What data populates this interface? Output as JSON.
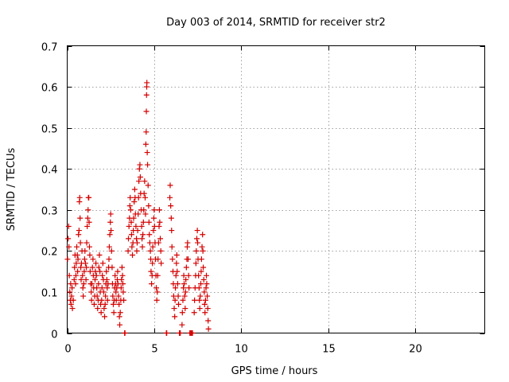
{
  "chart_data": {
    "type": "scatter",
    "title": "Day 003 of 2014, SRMTID for receiver str2",
    "xlabel": "GPS time / hours",
    "ylabel": "SRMTID / TECUs",
    "xlim": [
      0,
      24
    ],
    "ylim": [
      0,
      0.7
    ],
    "xticks": [
      "0",
      "5",
      "10",
      "15",
      "20"
    ],
    "yticks": [
      "0",
      "0.1",
      "0.2",
      "0.3",
      "0.4",
      "0.5",
      "0.6",
      "0.7"
    ],
    "grid": true,
    "marker": "plus",
    "color": "#d40000",
    "series": [
      {
        "name": "SRMTID",
        "points": [
          [
            0.02,
            0.18
          ],
          [
            0.05,
            0.23
          ],
          [
            0.08,
            0.26
          ],
          [
            0.1,
            0.21
          ],
          [
            0.12,
            0.14
          ],
          [
            0.15,
            0.1
          ],
          [
            0.18,
            0.08
          ],
          [
            0.2,
            0.12
          ],
          [
            0.22,
            0.07
          ],
          [
            0.25,
            0.09
          ],
          [
            0.28,
            0.11
          ],
          [
            0.3,
            0.06
          ],
          [
            0.35,
            0.08
          ],
          [
            0.4,
            0.13
          ],
          [
            0.42,
            0.16
          ],
          [
            0.45,
            0.19
          ],
          [
            0.48,
            0.12
          ],
          [
            0.5,
            0.14
          ],
          [
            0.52,
            0.17
          ],
          [
            0.55,
            0.21
          ],
          [
            0.58,
            0.19
          ],
          [
            0.6,
            0.15
          ],
          [
            0.62,
            0.18
          ],
          [
            0.65,
            0.24
          ],
          [
            0.68,
            0.25
          ],
          [
            0.7,
            0.32
          ],
          [
            0.72,
            0.33
          ],
          [
            0.74,
            0.28
          ],
          [
            0.76,
            0.22
          ],
          [
            0.78,
            0.16
          ],
          [
            0.8,
            0.13
          ],
          [
            0.82,
            0.17
          ],
          [
            0.85,
            0.2
          ],
          [
            0.88,
            0.14
          ],
          [
            0.9,
            0.11
          ],
          [
            0.92,
            0.09
          ],
          [
            0.95,
            0.12
          ],
          [
            0.98,
            0.15
          ],
          [
            1.0,
            0.18
          ],
          [
            1.02,
            0.2
          ],
          [
            1.05,
            0.17
          ],
          [
            1.08,
            0.13
          ],
          [
            1.1,
            0.16
          ],
          [
            1.12,
            0.22
          ],
          [
            1.15,
            0.26
          ],
          [
            1.18,
            0.28
          ],
          [
            1.2,
            0.3
          ],
          [
            1.22,
            0.33
          ],
          [
            1.24,
            0.33
          ],
          [
            1.26,
            0.27
          ],
          [
            1.28,
            0.21
          ],
          [
            1.3,
            0.19
          ],
          [
            1.32,
            0.15
          ],
          [
            1.35,
            0.12
          ],
          [
            1.38,
            0.1
          ],
          [
            1.4,
            0.08
          ],
          [
            1.42,
            0.12
          ],
          [
            1.45,
            0.16
          ],
          [
            1.48,
            0.18
          ],
          [
            1.5,
            0.14
          ],
          [
            1.52,
            0.11
          ],
          [
            1.55,
            0.07
          ],
          [
            1.58,
            0.09
          ],
          [
            1.6,
            0.13
          ],
          [
            1.62,
            0.15
          ],
          [
            1.65,
            0.17
          ],
          [
            1.68,
            0.14
          ],
          [
            1.7,
            0.11
          ],
          [
            1.72,
            0.09
          ],
          [
            1.75,
            0.06
          ],
          [
            1.78,
            0.08
          ],
          [
            1.8,
            0.12
          ],
          [
            1.82,
            0.16
          ],
          [
            1.85,
            0.19
          ],
          [
            1.88,
            0.15
          ],
          [
            1.9,
            0.1
          ],
          [
            1.92,
            0.07
          ],
          [
            1.95,
            0.05
          ],
          [
            1.98,
            0.08
          ],
          [
            2.0,
            0.11
          ],
          [
            2.02,
            0.14
          ],
          [
            2.05,
            0.17
          ],
          [
            2.08,
            0.13
          ],
          [
            2.1,
            0.1
          ],
          [
            2.12,
            0.06
          ],
          [
            2.15,
            0.04
          ],
          [
            2.18,
            0.07
          ],
          [
            2.2,
            0.09
          ],
          [
            2.22,
            0.12
          ],
          [
            2.25,
            0.15
          ],
          [
            2.28,
            0.13
          ],
          [
            2.3,
            0.11
          ],
          [
            2.32,
            0.08
          ],
          [
            2.35,
            0.12
          ],
          [
            2.38,
            0.16
          ],
          [
            2.4,
            0.18
          ],
          [
            2.42,
            0.21
          ],
          [
            2.45,
            0.24
          ],
          [
            2.48,
            0.27
          ],
          [
            2.5,
            0.29
          ],
          [
            2.52,
            0.25
          ],
          [
            2.55,
            0.2
          ],
          [
            2.58,
            0.16
          ],
          [
            2.6,
            0.12
          ],
          [
            2.62,
            0.09
          ],
          [
            2.65,
            0.07
          ],
          [
            2.68,
            0.05
          ],
          [
            2.7,
            0.08
          ],
          [
            2.72,
            0.11
          ],
          [
            2.75,
            0.14
          ],
          [
            2.78,
            0.12
          ],
          [
            2.8,
            0.1
          ],
          [
            2.82,
            0.08
          ],
          [
            2.85,
            0.11
          ],
          [
            2.88,
            0.13
          ],
          [
            2.9,
            0.15
          ],
          [
            2.92,
            0.12
          ],
          [
            2.95,
            0.09
          ],
          [
            2.98,
            0.07
          ],
          [
            3.0,
            0.04
          ],
          [
            3.02,
            0.02
          ],
          [
            3.05,
            0.05
          ],
          [
            3.08,
            0.08
          ],
          [
            3.1,
            0.11
          ],
          [
            3.12,
            0.13
          ],
          [
            3.15,
            0.16
          ],
          [
            3.18,
            0.14
          ],
          [
            3.2,
            0.12
          ],
          [
            3.22,
            0.1
          ],
          [
            3.25,
            0.08
          ],
          [
            3.3,
            0.0
          ],
          [
            3.32,
            0.0
          ],
          [
            3.5,
            0.2
          ],
          [
            3.52,
            0.23
          ],
          [
            3.55,
            0.26
          ],
          [
            3.58,
            0.28
          ],
          [
            3.6,
            0.31
          ],
          [
            3.62,
            0.33
          ],
          [
            3.65,
            0.3
          ],
          [
            3.68,
            0.27
          ],
          [
            3.7,
            0.24
          ],
          [
            3.72,
            0.21
          ],
          [
            3.75,
            0.19
          ],
          [
            3.78,
            0.22
          ],
          [
            3.8,
            0.25
          ],
          [
            3.82,
            0.28
          ],
          [
            3.85,
            0.32
          ],
          [
            3.88,
            0.35
          ],
          [
            3.9,
            0.33
          ],
          [
            3.92,
            0.29
          ],
          [
            3.95,
            0.26
          ],
          [
            3.98,
            0.23
          ],
          [
            4.0,
            0.2
          ],
          [
            4.02,
            0.22
          ],
          [
            4.05,
            0.25
          ],
          [
            4.08,
            0.29
          ],
          [
            4.1,
            0.33
          ],
          [
            4.12,
            0.37
          ],
          [
            4.15,
            0.4
          ],
          [
            4.18,
            0.41
          ],
          [
            4.2,
            0.38
          ],
          [
            4.22,
            0.34
          ],
          [
            4.25,
            0.3
          ],
          [
            4.28,
            0.26
          ],
          [
            4.3,
            0.23
          ],
          [
            4.32,
            0.21
          ],
          [
            4.35,
            0.24
          ],
          [
            4.38,
            0.27
          ],
          [
            4.4,
            0.3
          ],
          [
            4.42,
            0.34
          ],
          [
            4.45,
            0.37
          ],
          [
            4.48,
            0.33
          ],
          [
            4.5,
            0.29
          ],
          [
            4.52,
            0.46
          ],
          [
            4.54,
            0.49
          ],
          [
            4.55,
            0.54
          ],
          [
            4.56,
            0.58
          ],
          [
            4.57,
            0.6
          ],
          [
            4.58,
            0.61
          ],
          [
            4.6,
            0.44
          ],
          [
            4.62,
            0.41
          ],
          [
            4.65,
            0.36
          ],
          [
            4.68,
            0.31
          ],
          [
            4.7,
            0.27
          ],
          [
            4.72,
            0.24
          ],
          [
            4.75,
            0.22
          ],
          [
            4.78,
            0.2
          ],
          [
            4.8,
            0.18
          ],
          [
            4.82,
            0.15
          ],
          [
            4.85,
            0.12
          ],
          [
            4.88,
            0.14
          ],
          [
            4.9,
            0.17
          ],
          [
            4.92,
            0.21
          ],
          [
            4.95,
            0.25
          ],
          [
            4.98,
            0.28
          ],
          [
            5.0,
            0.3
          ],
          [
            5.02,
            0.26
          ],
          [
            5.05,
            0.22
          ],
          [
            5.08,
            0.18
          ],
          [
            5.1,
            0.14
          ],
          [
            5.12,
            0.11
          ],
          [
            5.15,
            0.08
          ],
          [
            5.18,
            0.1
          ],
          [
            5.2,
            0.14
          ],
          [
            5.22,
            0.18
          ],
          [
            5.25,
            0.22
          ],
          [
            5.28,
            0.26
          ],
          [
            5.3,
            0.3
          ],
          [
            5.32,
            0.27
          ],
          [
            5.35,
            0.23
          ],
          [
            5.38,
            0.2
          ],
          [
            5.4,
            0.17
          ],
          [
            5.7,
            0.0
          ],
          [
            5.72,
            0.0
          ],
          [
            5.9,
            0.33
          ],
          [
            5.92,
            0.36
          ],
          [
            5.95,
            0.31
          ],
          [
            5.98,
            0.28
          ],
          [
            6.0,
            0.25
          ],
          [
            6.02,
            0.21
          ],
          [
            6.05,
            0.18
          ],
          [
            6.08,
            0.15
          ],
          [
            6.1,
            0.12
          ],
          [
            6.12,
            0.09
          ],
          [
            6.15,
            0.06
          ],
          [
            6.18,
            0.04
          ],
          [
            6.2,
            0.08
          ],
          [
            6.22,
            0.11
          ],
          [
            6.25,
            0.14
          ],
          [
            6.28,
            0.17
          ],
          [
            6.3,
            0.19
          ],
          [
            6.32,
            0.15
          ],
          [
            6.35,
            0.12
          ],
          [
            6.38,
            0.09
          ],
          [
            6.4,
            0.07
          ],
          [
            6.45,
            0.0
          ],
          [
            6.5,
            0.0
          ],
          [
            6.6,
            0.02
          ],
          [
            6.62,
            0.05
          ],
          [
            6.65,
            0.08
          ],
          [
            6.68,
            0.11
          ],
          [
            6.7,
            0.14
          ],
          [
            6.72,
            0.12
          ],
          [
            6.75,
            0.09
          ],
          [
            6.78,
            0.06
          ],
          [
            6.8,
            0.1
          ],
          [
            6.82,
            0.13
          ],
          [
            6.85,
            0.16
          ],
          [
            6.88,
            0.18
          ],
          [
            6.9,
            0.21
          ],
          [
            6.92,
            0.22
          ],
          [
            6.95,
            0.18
          ],
          [
            6.98,
            0.14
          ],
          [
            7.0,
            0.11
          ],
          [
            7.05,
            0.0
          ],
          [
            7.1,
            0.0
          ],
          [
            7.15,
            0.0
          ],
          [
            7.2,
            0.0
          ],
          [
            7.3,
            0.05
          ],
          [
            7.32,
            0.08
          ],
          [
            7.35,
            0.11
          ],
          [
            7.38,
            0.14
          ],
          [
            7.4,
            0.17
          ],
          [
            7.42,
            0.2
          ],
          [
            7.45,
            0.23
          ],
          [
            7.48,
            0.25
          ],
          [
            7.5,
            0.22
          ],
          [
            7.52,
            0.18
          ],
          [
            7.55,
            0.14
          ],
          [
            7.58,
            0.11
          ],
          [
            7.6,
            0.08
          ],
          [
            7.62,
            0.06
          ],
          [
            7.65,
            0.09
          ],
          [
            7.68,
            0.12
          ],
          [
            7.7,
            0.15
          ],
          [
            7.72,
            0.18
          ],
          [
            7.75,
            0.21
          ],
          [
            7.78,
            0.24
          ],
          [
            7.8,
            0.2
          ],
          [
            7.82,
            0.16
          ],
          [
            7.85,
            0.13
          ],
          [
            7.88,
            0.1
          ],
          [
            7.9,
            0.07
          ],
          [
            7.92,
            0.05
          ],
          [
            7.95,
            0.08
          ],
          [
            7.98,
            0.11
          ],
          [
            8.0,
            0.14
          ],
          [
            8.02,
            0.12
          ],
          [
            8.05,
            0.09
          ],
          [
            8.08,
            0.06
          ],
          [
            8.1,
            0.03
          ],
          [
            8.12,
            0.01
          ]
        ]
      }
    ]
  }
}
